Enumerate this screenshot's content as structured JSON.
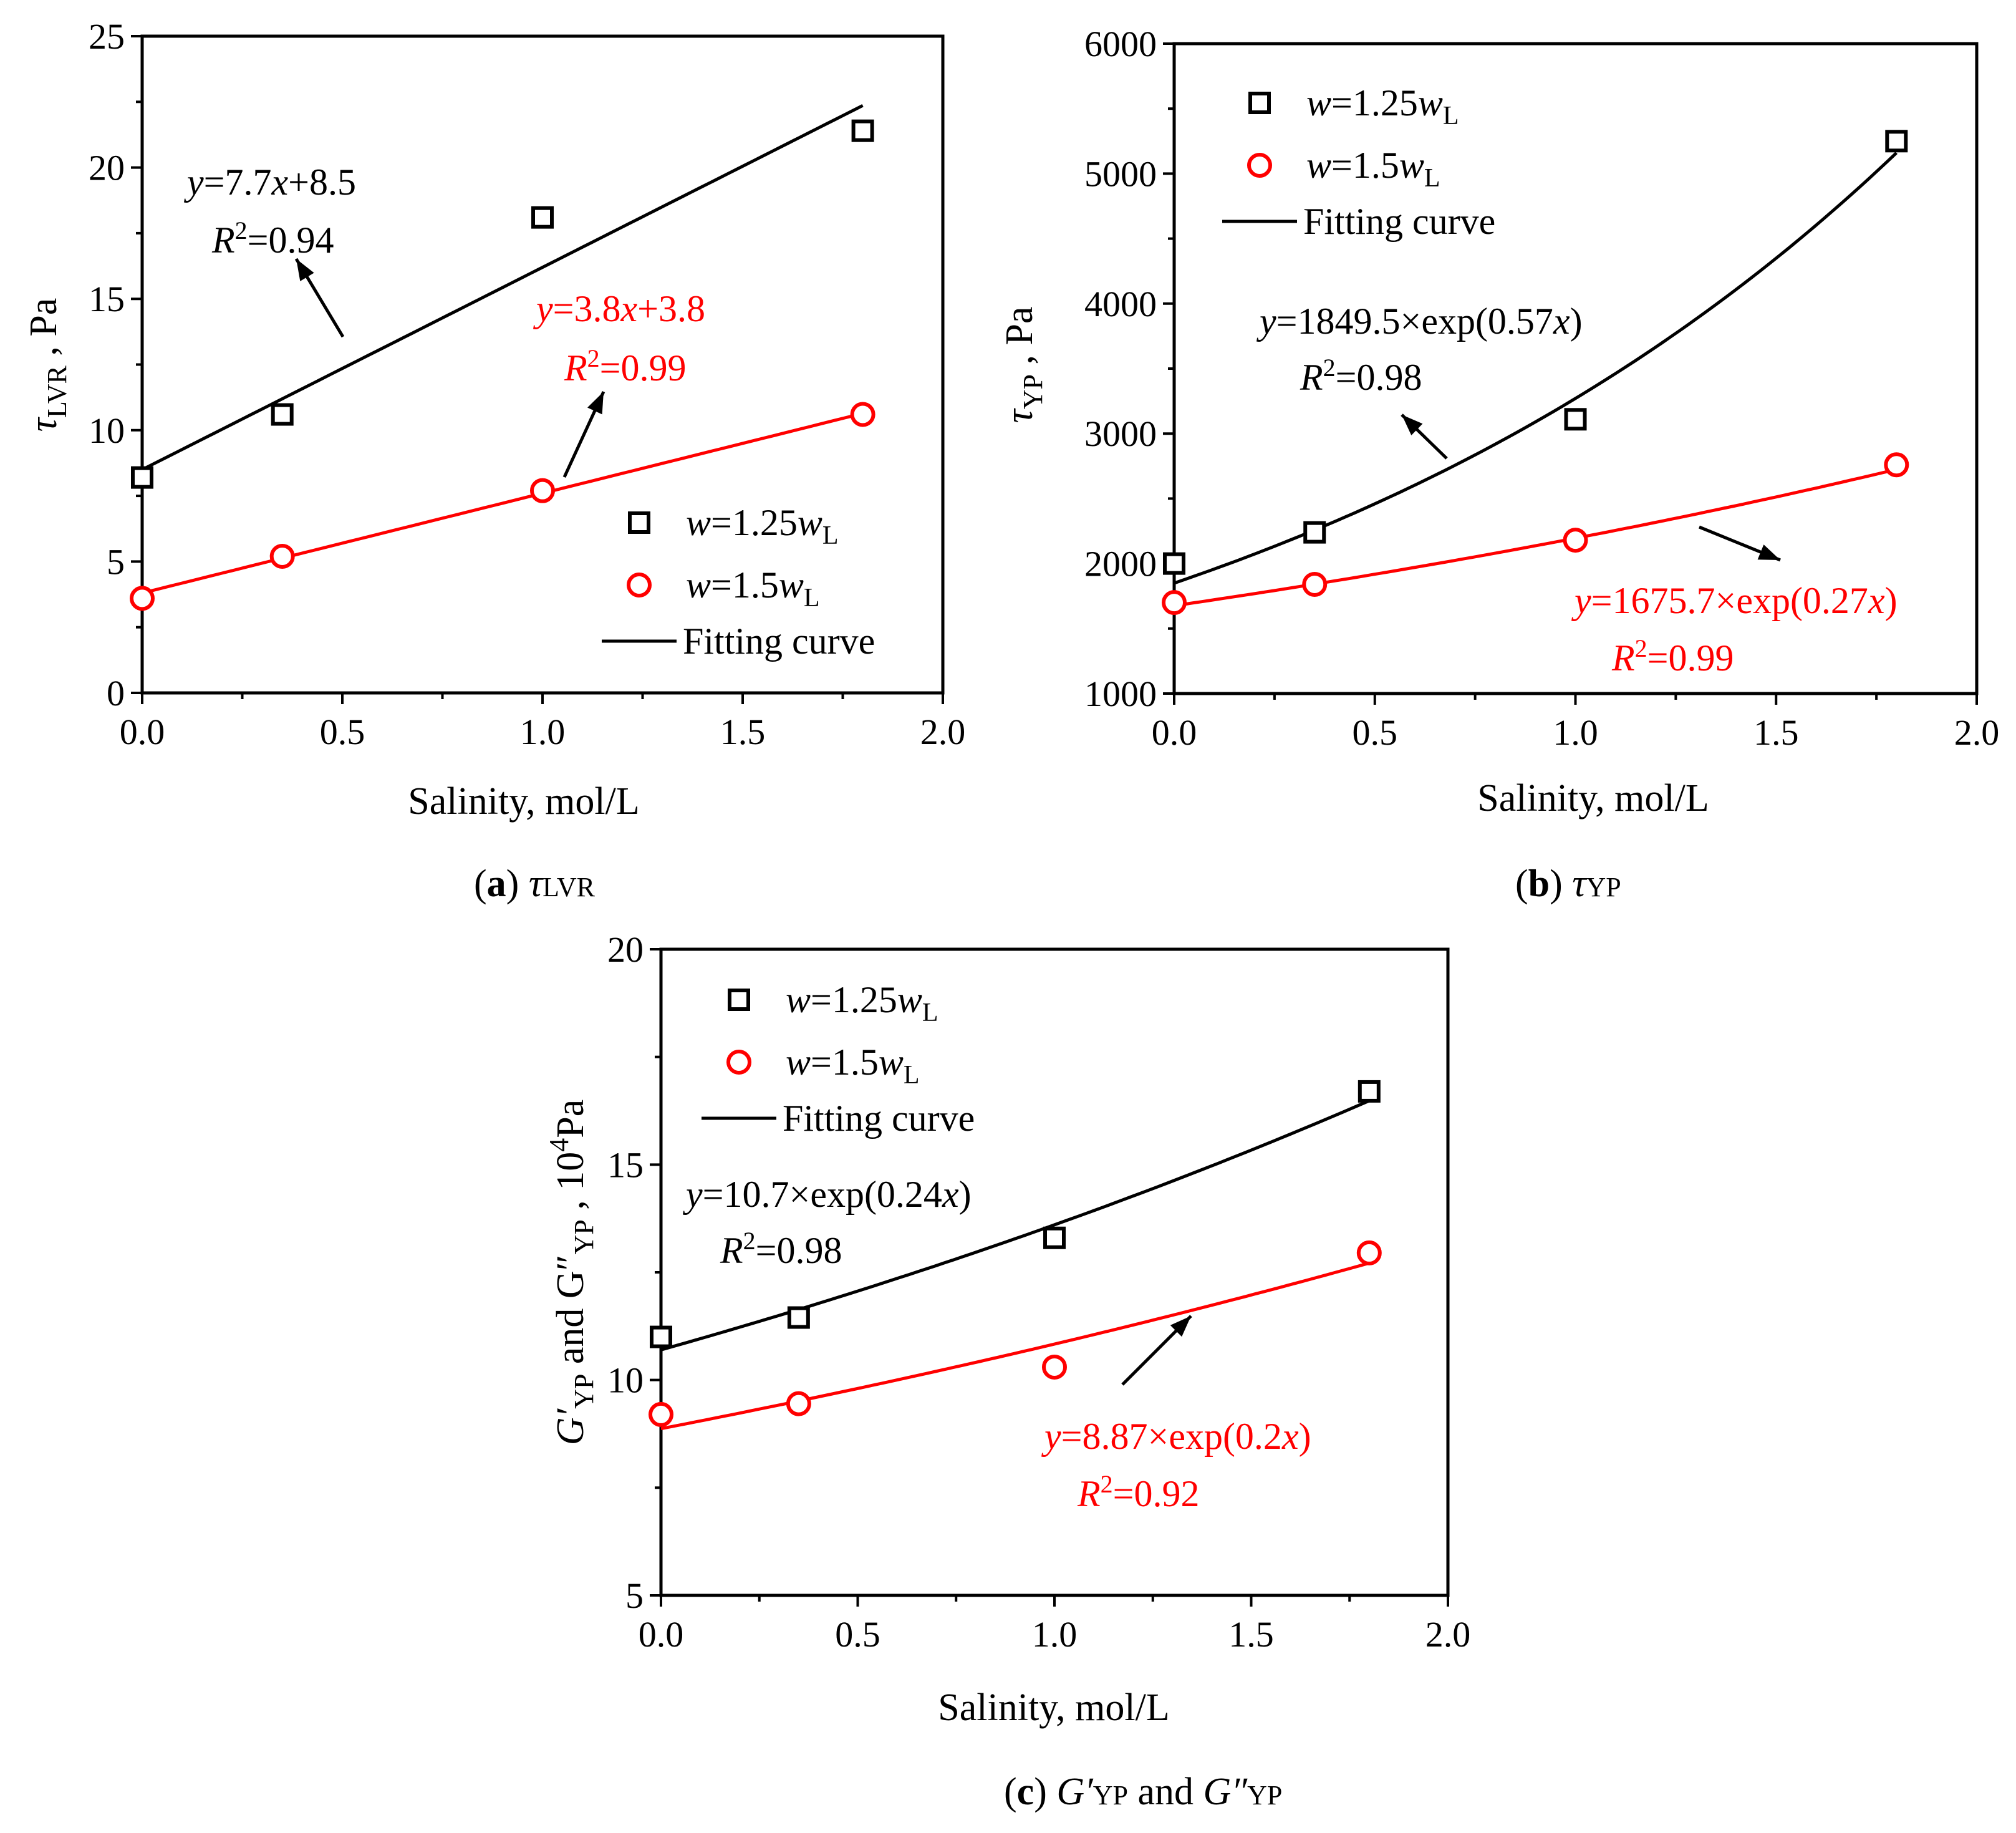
{
  "chart_data": [
    {
      "id": "a",
      "type": "scatter",
      "xlabel": "Salinity, mol/L",
      "ylabel": {
        "main": "τ",
        "sub": "LVR",
        "rest": " , Pa"
      },
      "xlim": [
        0.0,
        2.0
      ],
      "ylim": [
        0,
        25
      ],
      "xticks": [
        0.0,
        0.5,
        1.0,
        1.5,
        2.0
      ],
      "xtick_labels": [
        "0.0",
        "0.5",
        "1.0",
        "1.5",
        "2.0"
      ],
      "yticks": [
        0,
        5,
        10,
        15,
        20,
        25
      ],
      "ytick_labels": [
        "0",
        "5",
        "10",
        "15",
        "20",
        "25"
      ],
      "legend_position": "lower-right",
      "series": [
        {
          "name": "w=1.25wL",
          "marker": "square",
          "color": "#000000",
          "x": [
            0.0,
            0.35,
            1.0,
            1.8
          ],
          "y": [
            8.2,
            10.6,
            18.1,
            21.4
          ]
        },
        {
          "name": "w=1.5wL",
          "marker": "circle",
          "color": "#ff0000",
          "x": [
            0.0,
            0.35,
            1.0,
            1.8
          ],
          "y": [
            3.6,
            5.2,
            7.7,
            10.6
          ]
        }
      ],
      "fits": [
        {
          "model": "linear",
          "a": 8.5,
          "b": 7.7,
          "color": "#000000",
          "equation": "y=7.7x+8.5",
          "r2": "R2=0.94"
        },
        {
          "model": "linear",
          "a": 3.8,
          "b": 3.8,
          "color": "#ff0000",
          "equation": "y=3.8x+3.8",
          "r2": "R2=0.99"
        }
      ],
      "caption": {
        "letter": "(a)",
        "symbol": "τ",
        "sub": "LVR"
      }
    },
    {
      "id": "b",
      "type": "scatter",
      "xlabel": "Salinity, mol/L",
      "ylabel": {
        "main": "τ",
        "sub": "YP",
        "rest": " , Pa"
      },
      "xlim": [
        0.0,
        2.0
      ],
      "ylim": [
        1000,
        6000
      ],
      "xticks": [
        0.0,
        0.5,
        1.0,
        1.5,
        2.0
      ],
      "xtick_labels": [
        "0.0",
        "0.5",
        "1.0",
        "1.5",
        "2.0"
      ],
      "yticks": [
        1000,
        2000,
        3000,
        4000,
        5000,
        6000
      ],
      "ytick_labels": [
        "1000",
        "2000",
        "3000",
        "4000",
        "5000",
        "6000"
      ],
      "legend_position": "top-left",
      "series": [
        {
          "name": "w=1.25wL",
          "marker": "square",
          "color": "#000000",
          "x": [
            0.0,
            0.35,
            1.0,
            1.8
          ],
          "y": [
            2000,
            2240,
            3110,
            5250
          ]
        },
        {
          "name": "w=1.5wL",
          "marker": "circle",
          "color": "#ff0000",
          "x": [
            0.0,
            0.35,
            1.0,
            1.8
          ],
          "y": [
            1700,
            1840,
            2180,
            2760
          ]
        }
      ],
      "fits": [
        {
          "model": "exp",
          "a": 1849.5,
          "b": 0.57,
          "color": "#000000",
          "equation": "y=1849.5×exp(0.57x)",
          "r2": "R2=0.98"
        },
        {
          "model": "exp",
          "a": 1675.7,
          "b": 0.27,
          "color": "#ff0000",
          "equation": "y=1675.7×exp(0.27x)",
          "r2": "R2=0.99"
        }
      ],
      "caption": {
        "letter": "(b)",
        "symbol": "τ",
        "sub": "YP"
      }
    },
    {
      "id": "c",
      "type": "scatter",
      "xlabel": "Salinity, mol/L",
      "ylabel": {
        "p1": "G′",
        "s1": "YP",
        "p2": " and G″",
        "s2": "YP",
        "p3": " , 10",
        "sup": "4",
        "p4": "Pa"
      },
      "xlim": [
        0.0,
        2.0
      ],
      "ylim": [
        5,
        20
      ],
      "xticks": [
        0.0,
        0.5,
        1.0,
        1.5,
        2.0
      ],
      "xtick_labels": [
        "0.0",
        "0.5",
        "1.0",
        "1.5",
        "2.0"
      ],
      "yticks": [
        5,
        10,
        15,
        20
      ],
      "ytick_labels": [
        "5",
        "10",
        "15",
        "20"
      ],
      "legend_position": "top-left",
      "series": [
        {
          "name": "w=1.25wL",
          "marker": "square",
          "color": "#000000",
          "x": [
            0.0,
            0.35,
            1.0,
            1.8
          ],
          "y": [
            11.0,
            11.45,
            13.3,
            16.7
          ]
        },
        {
          "name": "w=1.5wL",
          "marker": "circle",
          "color": "#ff0000",
          "x": [
            0.0,
            0.35,
            1.0,
            1.8
          ],
          "y": [
            9.2,
            9.45,
            10.3,
            12.95
          ]
        }
      ],
      "fits": [
        {
          "model": "exp",
          "a": 10.7,
          "b": 0.24,
          "color": "#000000",
          "equation": "y=10.7×exp(0.24x)",
          "r2": "R2=0.98"
        },
        {
          "model": "exp",
          "a": 8.87,
          "b": 0.2,
          "color": "#ff0000",
          "equation": "y=8.87×exp(0.2x)",
          "r2": "R2=0.92"
        }
      ],
      "caption": {
        "letter": "(c)",
        "symbol": "G′",
        "sub": "YP",
        "and": " and ",
        "symbol2": "G″",
        "sub2": "YP"
      }
    }
  ],
  "legend": {
    "square_label": {
      "pre": "w",
      "mid": "=1.25",
      "w": "w",
      "sub": "L"
    },
    "circle_label": {
      "pre": "w",
      "mid": "=1.5",
      "w": "w",
      "sub": "L"
    },
    "fit_label": "Fitting curve"
  },
  "colors": {
    "black_series": "#000000",
    "red_series": "#ff0000",
    "axis": "#000000",
    "background": "#ffffff"
  }
}
